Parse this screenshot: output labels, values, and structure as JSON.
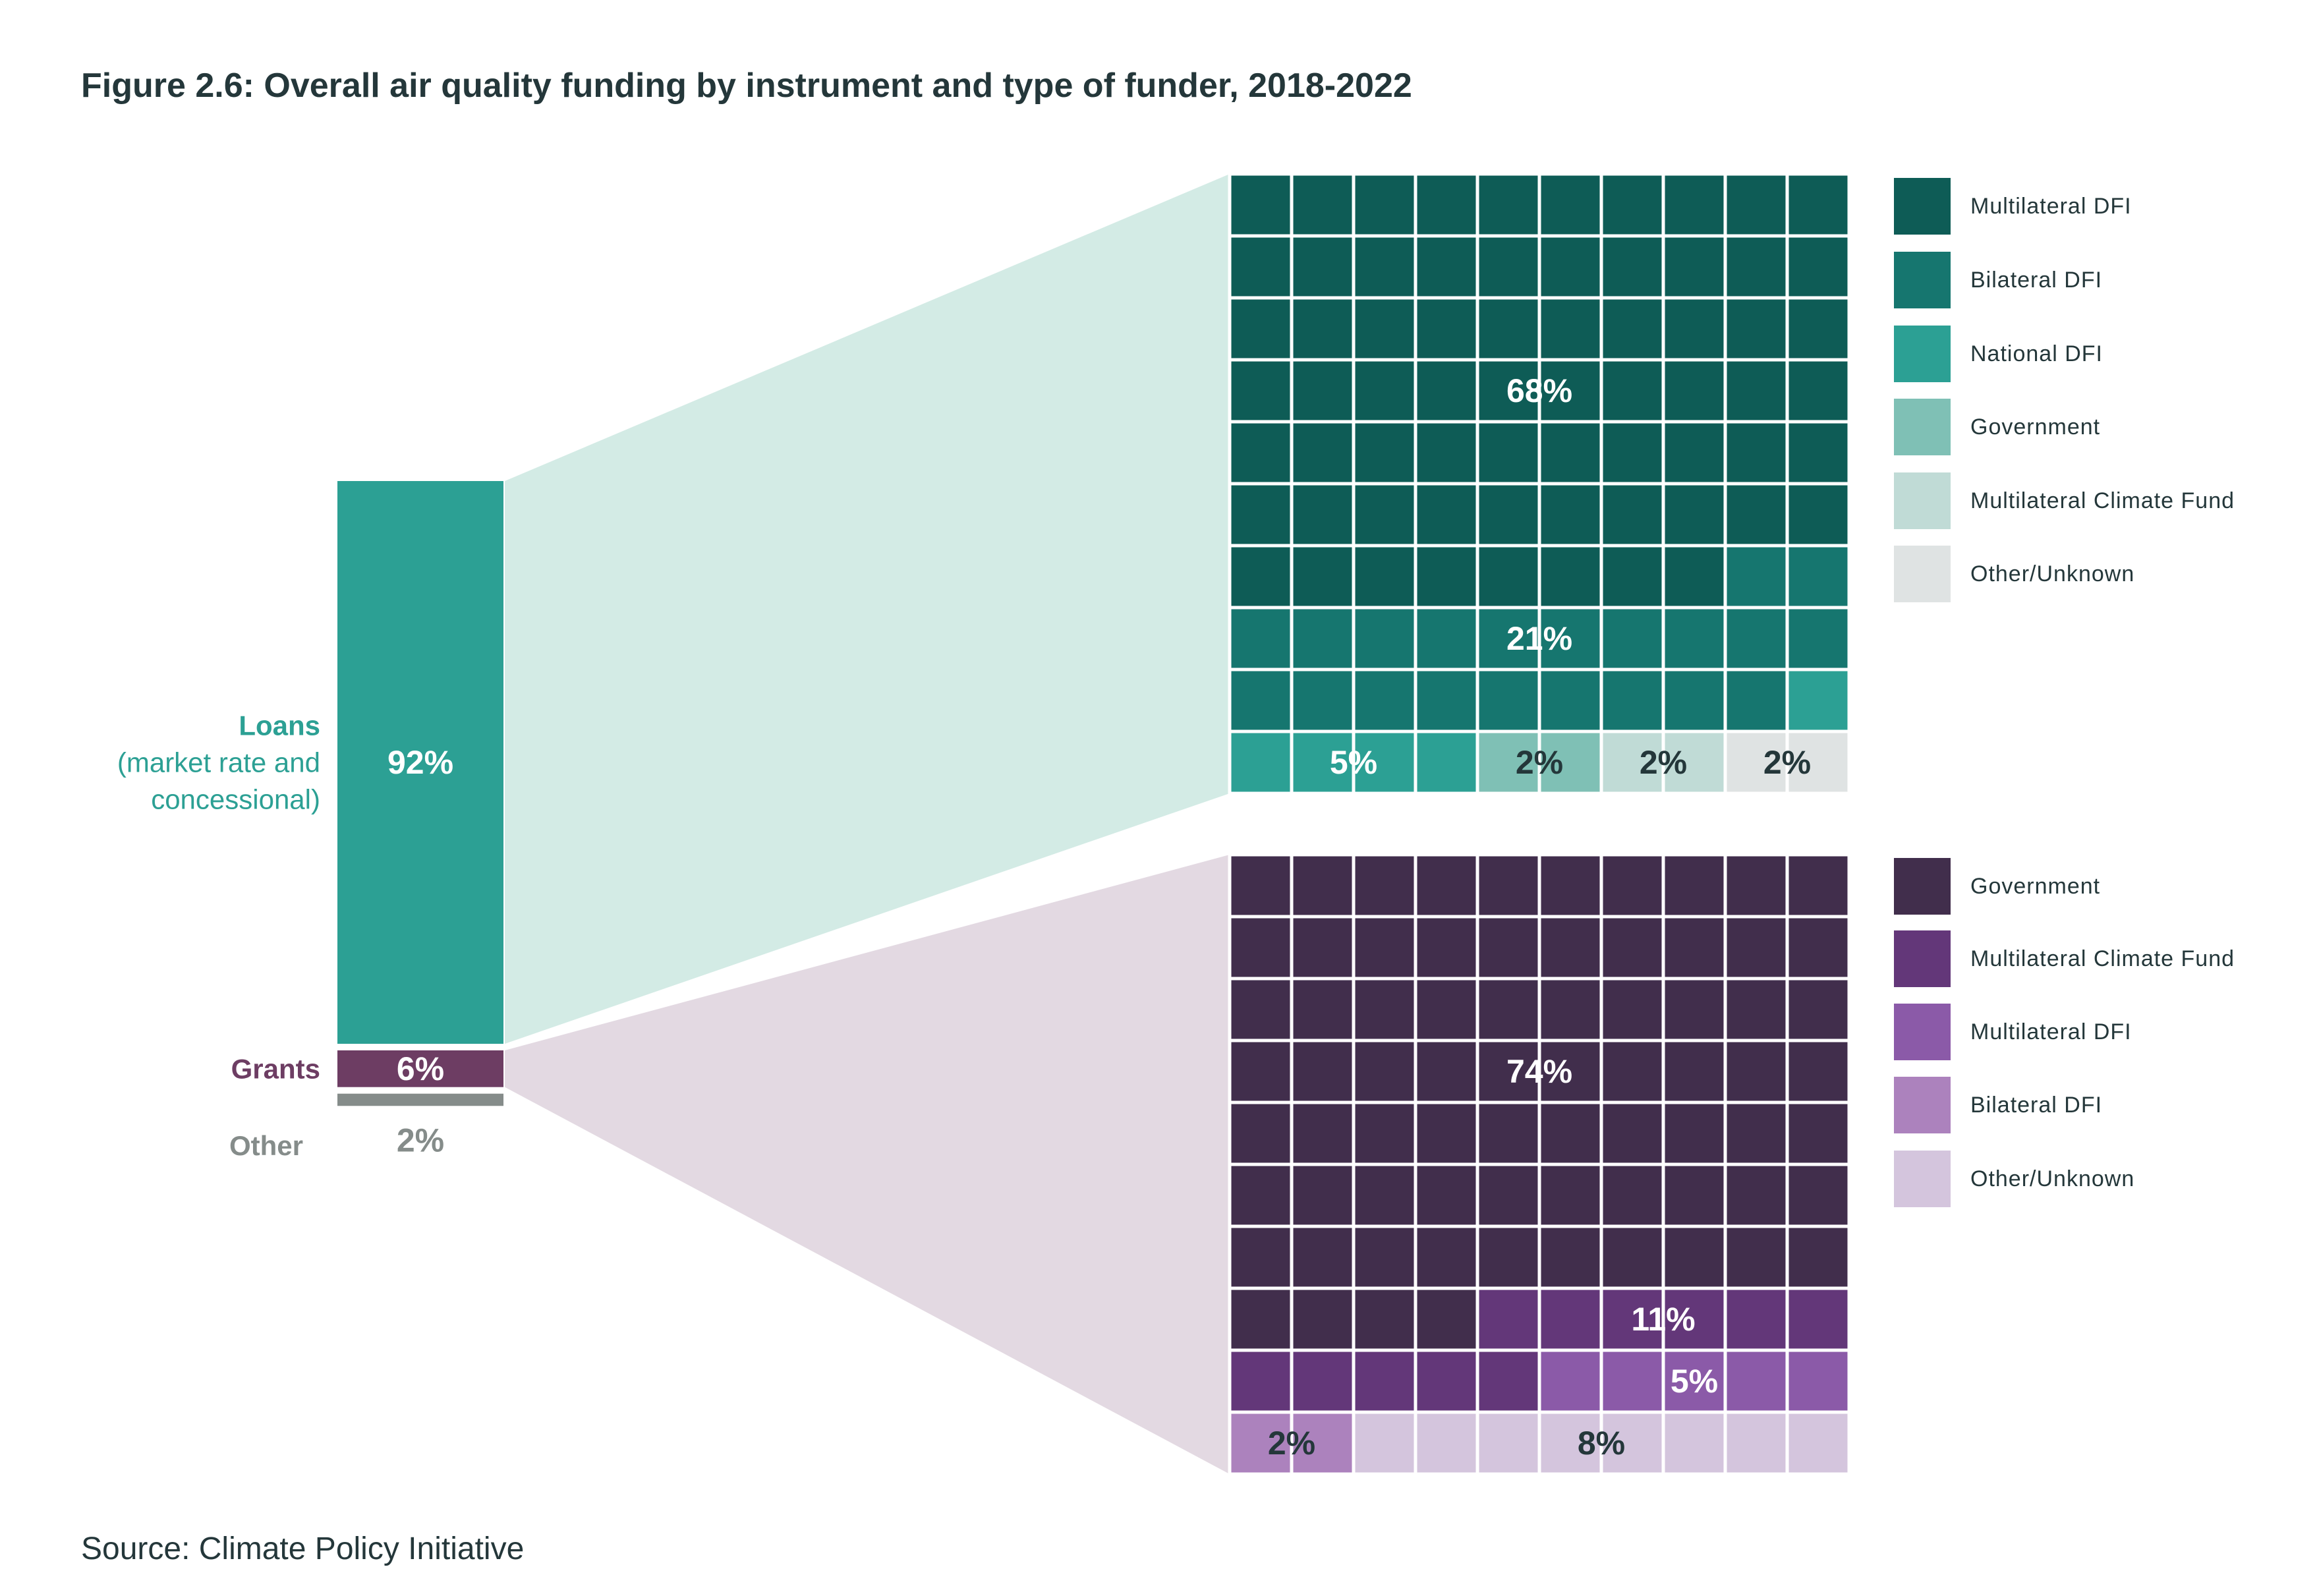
{
  "title": "Figure 2.6: Overall air quality funding by instrument and type of funder, 2018-2022",
  "source": "Source: Climate Policy Initiative",
  "instruments": [
    {
      "label": "Loans",
      "sublabel_1": "(market rate and",
      "sublabel_2": "concessional)",
      "value_label": "92%",
      "value": 92,
      "color": "#2ca094",
      "label_color": "#2ca094"
    },
    {
      "label": "Grants",
      "value_label": "6%",
      "value": 6,
      "color": "#6d3d63",
      "label_color": "#6d3d63"
    },
    {
      "label": "Other",
      "value_label": "2%",
      "value": 2,
      "color": "#858c8a",
      "label_color": "#858c8a"
    }
  ],
  "chart_data": [
    {
      "type": "waffle",
      "instrument": "Loans",
      "funnel_color": "#d3ebe5",
      "cells_per_row": 10,
      "rows": 10,
      "categories": [
        {
          "name": "Multilateral DFI",
          "value": 68,
          "label": "68%",
          "color": "#0e5c56",
          "label_color": "#ffffff"
        },
        {
          "name": "Bilateral DFI",
          "value": 21,
          "label": "21%",
          "color": "#16766f",
          "label_color": "#ffffff"
        },
        {
          "name": "National DFI",
          "value": 5,
          "label": "5%",
          "color": "#2ca094",
          "label_color": "#ffffff"
        },
        {
          "name": "Government",
          "value": 2,
          "label": "2%",
          "color": "#7fc0b5",
          "label_color": "#24373a"
        },
        {
          "name": "Multilateral Climate Fund",
          "value": 2,
          "label": "2%",
          "color": "#c0dbd6",
          "label_color": "#24373a"
        },
        {
          "name": "Other/Unknown",
          "value": 2,
          "label": "2%",
          "color": "#dfe3e3",
          "label_color": "#24373a"
        }
      ]
    },
    {
      "type": "waffle",
      "instrument": "Grants",
      "funnel_color": "#e3d9e2",
      "cells_per_row": 10,
      "rows": 10,
      "categories": [
        {
          "name": "Government",
          "value": 74,
          "label": "74%",
          "color": "#412e4c",
          "label_color": "#ffffff"
        },
        {
          "name": "Multilateral Climate Fund",
          "value": 11,
          "label": "11%",
          "color": "#633779",
          "label_color": "#ffffff"
        },
        {
          "name": "Multilateral DFI",
          "value": 5,
          "label": "5%",
          "color": "#8b5aa8",
          "label_color": "#ffffff"
        },
        {
          "name": "Bilateral DFI",
          "value": 2,
          "label": "2%",
          "color": "#ac82bd",
          "label_color": "#24373a"
        },
        {
          "name": "Other/Unknown",
          "value": 8,
          "label": "8%",
          "color": "#d4c5dd",
          "label_color": "#24373a"
        }
      ]
    }
  ]
}
